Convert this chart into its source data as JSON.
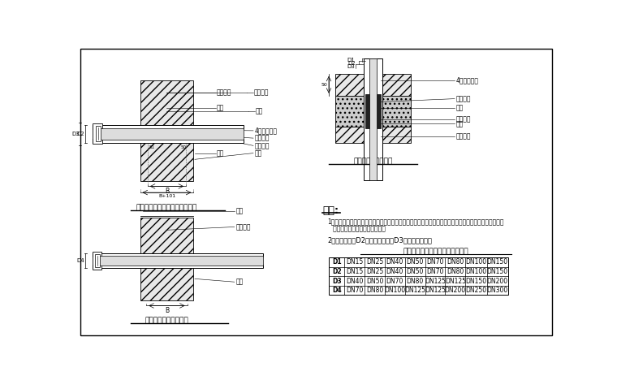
{
  "bg_color": "#ffffff",
  "caption1": "燃气地下引入管穿基础墙的做法",
  "caption2": "燃气管穿楼板的做法",
  "caption3": "燃气管穿隔断墙的做法",
  "note_title": "说明:",
  "note1_a": "1．本图若用于高层楼缝时，燃气管在穿基础墙处其上端与套管的间距以受到绝缘最大沉降分差，两侧保管",
  "note1_b": "   一定间隙，并用沥青油麻堵严。",
  "note2": "2．管系重量时D2应按计算确定，D3应按相应钢搅。",
  "table_title": "室内燃气管套管规格（公称直径）",
  "table_rows": [
    [
      "D1",
      "DN15",
      "DN25",
      "DN40",
      "DN50",
      "DN70",
      "DN80",
      "DN100",
      "DN150"
    ],
    [
      "D2",
      "DN15",
      "DN25",
      "DN40",
      "DN50",
      "DN70",
      "DN80",
      "DN100",
      "DN150"
    ],
    [
      "D3",
      "DN40",
      "DN50",
      "DN70",
      "DN80",
      "DN125",
      "DN125",
      "DN150",
      "DN200"
    ],
    [
      "D4",
      "DN70",
      "DN80",
      "DN100",
      "DN125",
      "DN125",
      "DN200",
      "DN250",
      "DN300"
    ]
  ],
  "tl_labels": [
    "水泥砂浆",
    "套管",
    "4分套管留严",
    "油麻层夹",
    "燃气管道",
    "墙体"
  ],
  "tr_labels": [
    "4米楼板留严",
    "水泥砂浆",
    "楼板",
    "油麻层夹",
    "套管",
    "燃气管道"
  ],
  "bl_labels": [
    "水泥外皮",
    "油麻层夹",
    "燃气管道",
    "墙体"
  ]
}
